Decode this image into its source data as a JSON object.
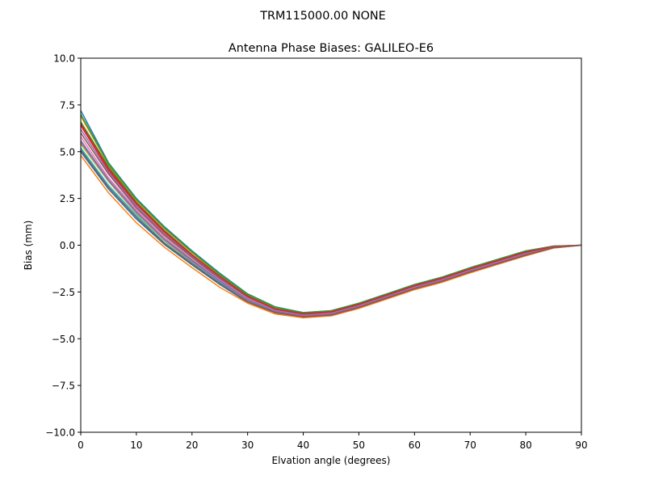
{
  "figure": {
    "suptitle": "TRM115000.00    NONE"
  },
  "chart_data": {
    "type": "line",
    "title": "Antenna Phase Biases: GALILEO-E6",
    "xlabel": "Elvation angle (degrees)",
    "ylabel": "Bias (mm)",
    "xlim": [
      0,
      90
    ],
    "ylim": [
      -10,
      10
    ],
    "grid": false,
    "x_ticks": [
      0,
      10,
      20,
      30,
      40,
      50,
      60,
      70,
      80,
      90
    ],
    "x_tick_labels": [
      "0",
      "10",
      "20",
      "30",
      "40",
      "50",
      "60",
      "70",
      "80",
      "90"
    ],
    "y_ticks": [
      -10,
      -7.5,
      -5,
      -2.5,
      0,
      2.5,
      5,
      7.5,
      10
    ],
    "y_tick_labels": [
      "−10.0",
      "−7.5",
      "−5.0",
      "−2.5",
      "0.0",
      "2.5",
      "5.0",
      "7.5",
      "10.0"
    ],
    "x": [
      0,
      5,
      10,
      15,
      20,
      25,
      30,
      35,
      40,
      45,
      50,
      55,
      60,
      65,
      70,
      75,
      80,
      85,
      90
    ],
    "colors": [
      "#1f77b4",
      "#ff7f0e",
      "#2ca02c",
      "#d62728",
      "#9467bd",
      "#8c564b",
      "#e377c2",
      "#7f7f7f",
      "#bcbd22",
      "#17becf"
    ],
    "series": [
      {
        "values": [
          7.2,
          4.4,
          2.5,
          1.0,
          -0.3,
          -1.5,
          -2.6,
          -3.3,
          -3.6,
          -3.5,
          -3.1,
          -2.6,
          -2.1,
          -1.7,
          -1.2,
          -0.75,
          -0.3,
          -0.05,
          0.0
        ]
      },
      {
        "values": [
          6.9,
          4.3,
          2.4,
          0.9,
          -0.4,
          -1.6,
          -2.65,
          -3.35,
          -3.62,
          -3.52,
          -3.12,
          -2.62,
          -2.12,
          -1.72,
          -1.22,
          -0.77,
          -0.32,
          -0.06,
          0.0
        ]
      },
      {
        "values": [
          6.6,
          4.2,
          2.3,
          0.8,
          -0.5,
          -1.65,
          -2.7,
          -3.4,
          -3.65,
          -3.55,
          -3.15,
          -2.65,
          -2.15,
          -1.75,
          -1.25,
          -0.8,
          -0.35,
          -0.07,
          0.0
        ]
      },
      {
        "values": [
          6.4,
          4.0,
          2.2,
          0.7,
          -0.55,
          -1.7,
          -2.75,
          -3.42,
          -3.67,
          -3.57,
          -3.17,
          -2.67,
          -2.17,
          -1.77,
          -1.27,
          -0.82,
          -0.37,
          -0.08,
          0.0
        ]
      },
      {
        "values": [
          6.2,
          3.9,
          2.1,
          0.6,
          -0.6,
          -1.75,
          -2.78,
          -3.45,
          -3.7,
          -3.6,
          -3.2,
          -2.7,
          -2.2,
          -1.8,
          -1.3,
          -0.85,
          -0.4,
          -0.09,
          0.0
        ]
      },
      {
        "values": [
          6.0,
          3.8,
          2.0,
          0.55,
          -0.65,
          -1.8,
          -2.8,
          -3.47,
          -3.72,
          -3.62,
          -3.22,
          -2.72,
          -2.22,
          -1.82,
          -1.32,
          -0.87,
          -0.42,
          -0.1,
          0.0
        ]
      },
      {
        "values": [
          5.8,
          3.6,
          1.9,
          0.45,
          -0.75,
          -1.85,
          -2.85,
          -3.5,
          -3.75,
          -3.65,
          -3.25,
          -2.75,
          -2.25,
          -1.85,
          -1.35,
          -0.9,
          -0.45,
          -0.1,
          0.0
        ]
      },
      {
        "values": [
          5.6,
          3.5,
          1.8,
          0.35,
          -0.8,
          -1.9,
          -2.9,
          -3.52,
          -3.77,
          -3.67,
          -3.27,
          -2.77,
          -2.27,
          -1.87,
          -1.37,
          -0.92,
          -0.47,
          -0.11,
          0.0
        ]
      },
      {
        "values": [
          5.4,
          3.4,
          1.7,
          0.25,
          -0.9,
          -1.95,
          -2.95,
          -3.55,
          -3.8,
          -3.7,
          -3.3,
          -2.8,
          -2.3,
          -1.9,
          -1.4,
          -0.95,
          -0.5,
          -0.12,
          0.0
        ]
      },
      {
        "values": [
          5.2,
          3.2,
          1.6,
          0.15,
          -0.95,
          -2.0,
          -3.0,
          -3.58,
          -3.82,
          -3.72,
          -3.32,
          -2.82,
          -2.32,
          -1.92,
          -1.42,
          -0.97,
          -0.52,
          -0.13,
          0.0
        ]
      },
      {
        "values": [
          5.0,
          3.0,
          1.4,
          0.05,
          -1.05,
          -2.1,
          -3.05,
          -3.62,
          -3.85,
          -3.75,
          -3.35,
          -2.85,
          -2.35,
          -1.95,
          -1.45,
          -1.0,
          -0.55,
          -0.14,
          0.0
        ]
      },
      {
        "values": [
          4.8,
          2.8,
          1.2,
          -0.1,
          -1.2,
          -2.25,
          -3.1,
          -3.68,
          -3.88,
          -3.78,
          -3.38,
          -2.88,
          -2.38,
          -1.98,
          -1.48,
          -1.02,
          -0.57,
          -0.15,
          0.0
        ]
      },
      {
        "values": [
          7.0,
          4.35,
          2.45,
          0.95,
          -0.35,
          -1.55,
          -2.62,
          -3.32,
          -3.61,
          -3.51,
          -3.11,
          -2.61,
          -2.11,
          -1.71,
          -1.21,
          -0.76,
          -0.31,
          -0.05,
          0.0
        ]
      },
      {
        "values": [
          6.5,
          4.1,
          2.25,
          0.75,
          -0.52,
          -1.68,
          -2.72,
          -3.41,
          -3.66,
          -3.56,
          -3.16,
          -2.66,
          -2.16,
          -1.76,
          -1.26,
          -0.81,
          -0.36,
          -0.07,
          0.0
        ]
      },
      {
        "values": [
          5.5,
          3.45,
          1.75,
          0.3,
          -0.85,
          -1.92,
          -2.92,
          -3.53,
          -3.78,
          -3.68,
          -3.28,
          -2.78,
          -2.28,
          -1.88,
          -1.38,
          -0.93,
          -0.48,
          -0.11,
          0.0
        ]
      },
      {
        "values": [
          5.1,
          3.1,
          1.5,
          0.1,
          -1.0,
          -2.05,
          -3.02,
          -3.6,
          -3.83,
          -3.73,
          -3.33,
          -2.83,
          -2.33,
          -1.93,
          -1.43,
          -0.98,
          -0.53,
          -0.13,
          0.0
        ]
      }
    ]
  }
}
